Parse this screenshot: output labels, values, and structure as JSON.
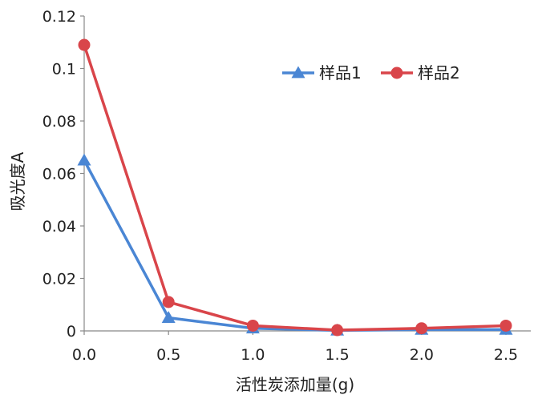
{
  "chart_data": {
    "type": "line",
    "xlabel": "活性炭添加量(g)",
    "ylabel": "吸光度A",
    "x": [
      0.0,
      0.5,
      1.0,
      1.5,
      2.0,
      2.5
    ],
    "x_tick_labels": [
      "0.0",
      "0.5",
      "1.0",
      "1.5",
      "2.0",
      "2.5"
    ],
    "xlim": [
      0.0,
      2.5
    ],
    "y_ticks": [
      0,
      0.02,
      0.04,
      0.06,
      0.08,
      0.1,
      0.12
    ],
    "y_tick_labels": [
      "0",
      "0.02",
      "0.04",
      "0.06",
      "0.08",
      "0.1",
      "0.12"
    ],
    "ylim": [
      0,
      0.12
    ],
    "grid": false,
    "legend_position": "top-right",
    "series": [
      {
        "name": "样品1",
        "marker": "triangle",
        "color": "#4a86d4",
        "values": [
          0.065,
          0.005,
          0.001,
          0.0002,
          0.0005,
          0.0005
        ]
      },
      {
        "name": "样品2",
        "marker": "circle",
        "color": "#d9454a",
        "values": [
          0.109,
          0.011,
          0.002,
          0.0003,
          0.001,
          0.002
        ]
      }
    ]
  }
}
